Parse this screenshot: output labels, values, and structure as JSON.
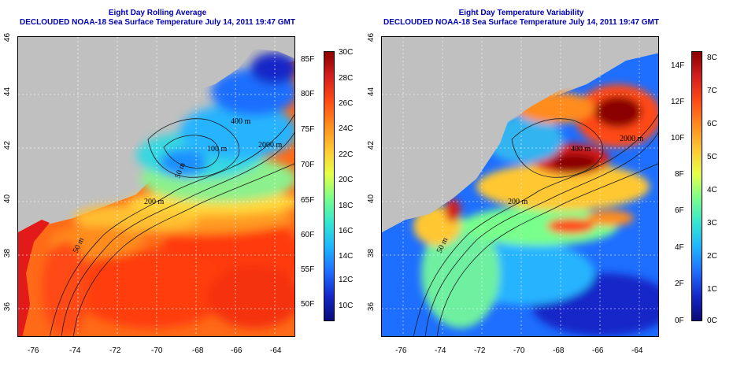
{
  "left_panel": {
    "title": "Eight Day Rolling Average",
    "subtitle": "DECLOUDED NOAA-18 Sea Surface Temperature July 14, 2011 19:47 GMT",
    "x_ticks": [
      "-76",
      "-74",
      "-72",
      "-70",
      "-68",
      "-66",
      "-64"
    ],
    "y_ticks": [
      "46",
      "44",
      "42",
      "40",
      "38",
      "36"
    ],
    "contour_labels": [
      "400 m",
      "2000 m",
      "100 m",
      "50 m",
      "200 m",
      "50 m"
    ],
    "colorbar": {
      "fahrenheit": [
        "85F",
        "80F",
        "75F",
        "70F",
        "65F",
        "60F",
        "55F",
        "50F"
      ],
      "celsius": [
        "30C",
        "28C",
        "26C",
        "24C",
        "22C",
        "20C",
        "18C",
        "16C",
        "14C",
        "12C",
        "10C"
      ],
      "colors": [
        "#8b0000",
        "#d41e1e",
        "#ff4a14",
        "#ff8c1e",
        "#ffc832",
        "#e6ff46",
        "#78ff8c",
        "#32e6d2",
        "#1eb4ff",
        "#1e6eff",
        "#1428c8",
        "#0a0a78"
      ]
    }
  },
  "right_panel": {
    "title": "Eight Day Temperature Variability",
    "subtitle": "DECLOUDED NOAA-18 Sea Surface Temperature July 14, 2011 19:47 GMT",
    "x_ticks": [
      "-76",
      "-74",
      "-72",
      "-70",
      "-68",
      "-66",
      "-64"
    ],
    "y_ticks": [
      "46",
      "44",
      "42",
      "40",
      "38",
      "36"
    ],
    "contour_labels": [
      "400 m",
      "2000 m",
      "200 m",
      "50 m"
    ],
    "colorbar": {
      "fahrenheit": [
        "14F",
        "12F",
        "10F",
        "8F",
        "6F",
        "4F",
        "2F",
        "0F"
      ],
      "celsius": [
        "8C",
        "7C",
        "6C",
        "5C",
        "4C",
        "3C",
        "2C",
        "1C",
        "0C"
      ],
      "colors": [
        "#8b0000",
        "#d41e1e",
        "#ff4a14",
        "#ff8c1e",
        "#ffc832",
        "#e6ff46",
        "#78ff8c",
        "#32e6d2",
        "#1eb4ff",
        "#1e6eff",
        "#1428c8",
        "#0a0a78"
      ]
    }
  }
}
